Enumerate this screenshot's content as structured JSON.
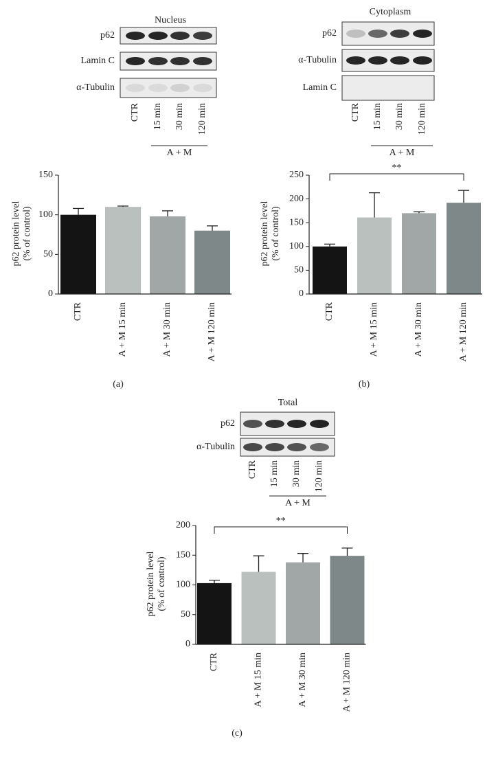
{
  "blots": [
    {
      "title": "Nucleus",
      "rows": [
        "p62",
        "Lamin C",
        "α-Tubulin"
      ],
      "lanes": [
        "CTR",
        "15 min",
        "30 min",
        "120 min"
      ],
      "group": "A + M"
    },
    {
      "title": "Cytoplasm",
      "rows": [
        "p62",
        "α-Tubulin",
        "Lamin C"
      ],
      "lanes": [
        "CTR",
        "15 min",
        "30 min",
        "120 min"
      ],
      "group": "A + M"
    },
    {
      "title": "Total",
      "rows": [
        "p62",
        "α-Tubulin"
      ],
      "lanes": [
        "CTR",
        "15 min",
        "30 min",
        "120 min"
      ],
      "group": "A + M"
    }
  ],
  "chart_data": [
    {
      "type": "bar",
      "panel_label": "(a)",
      "y_label": [
        "p62 protein level",
        "(% of control)"
      ],
      "categories": [
        "CTR",
        "A + M 15 min",
        "A + M 30 min",
        "A + M 120 min"
      ],
      "values": [
        100,
        110,
        98,
        80
      ],
      "errors": [
        8,
        1,
        7,
        6
      ],
      "colors": [
        "#141414",
        "#b9c0bd",
        "#a1a7a6",
        "#7f8889"
      ],
      "ylim": [
        0,
        150
      ],
      "yticks": [
        0,
        50,
        100,
        150
      ]
    },
    {
      "type": "bar",
      "panel_label": "(b)",
      "y_label": [
        "p62 protein level",
        "(% of control)"
      ],
      "categories": [
        "CTR",
        "A + M 15 min",
        "A + M 30 min",
        "A + M 120 min"
      ],
      "values": [
        100,
        161,
        170,
        192
      ],
      "errors": [
        5,
        52,
        3,
        26
      ],
      "colors": [
        "#141414",
        "#b9c0bd",
        "#a1a7a6",
        "#7f8889"
      ],
      "ylim": [
        0,
        250
      ],
      "yticks": [
        0,
        50,
        100,
        150,
        200,
        250
      ],
      "annotation": "**"
    },
    {
      "type": "bar",
      "panel_label": "(c)",
      "y_label": [
        "p62 protein level",
        "(% of control)"
      ],
      "categories": [
        "CTR",
        "A + M 15 min",
        "A + M 30 min",
        "A + M 120 min"
      ],
      "values": [
        103,
        122,
        138,
        149
      ],
      "errors": [
        5,
        27,
        15,
        13
      ],
      "colors": [
        "#141414",
        "#b9c0bd",
        "#a1a7a6",
        "#7f8889"
      ],
      "ylim": [
        0,
        200
      ],
      "yticks": [
        0,
        50,
        100,
        150,
        200
      ],
      "annotation": "**"
    }
  ]
}
